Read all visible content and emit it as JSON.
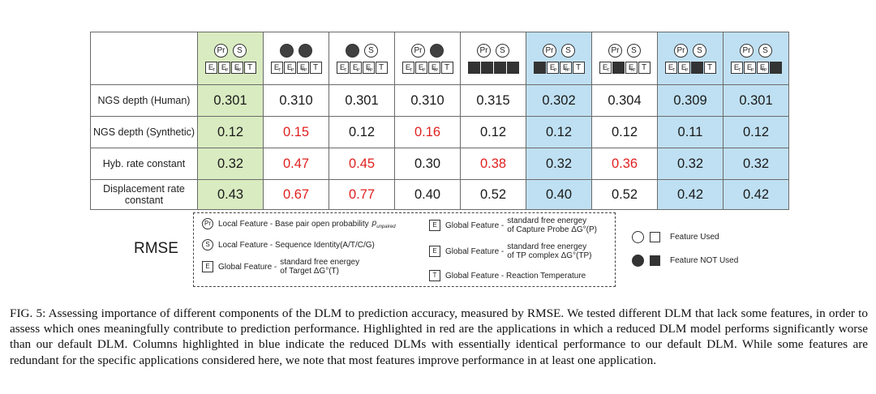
{
  "columns": [
    {
      "pr": "Pr",
      "s": "S",
      "pr_used": true,
      "s_used": true,
      "et_used": true,
      "ep_used": true,
      "etp_used": true,
      "t_used": true,
      "highlight": "green"
    },
    {
      "pr": "Pr",
      "s": "S",
      "pr_used": false,
      "s_used": false,
      "et_used": true,
      "ep_used": true,
      "etp_used": true,
      "t_used": true,
      "highlight": "none"
    },
    {
      "pr": "Pr",
      "s": "S",
      "pr_used": false,
      "s_used": true,
      "et_used": true,
      "ep_used": true,
      "etp_used": true,
      "t_used": true,
      "highlight": "none"
    },
    {
      "pr": "Pr",
      "s": "S",
      "pr_used": true,
      "s_used": false,
      "et_used": true,
      "ep_used": true,
      "etp_used": true,
      "t_used": true,
      "highlight": "none"
    },
    {
      "pr": "Pr",
      "s": "S",
      "pr_used": true,
      "s_used": true,
      "et_used": false,
      "ep_used": false,
      "etp_used": false,
      "t_used": false,
      "highlight": "none"
    },
    {
      "pr": "Pr",
      "s": "S",
      "pr_used": true,
      "s_used": true,
      "et_used": false,
      "ep_used": true,
      "etp_used": true,
      "t_used": true,
      "highlight": "blue"
    },
    {
      "pr": "Pr",
      "s": "S",
      "pr_used": true,
      "s_used": true,
      "et_used": true,
      "ep_used": false,
      "etp_used": true,
      "t_used": true,
      "highlight": "none"
    },
    {
      "pr": "Pr",
      "s": "S",
      "pr_used": true,
      "s_used": true,
      "et_used": true,
      "ep_used": true,
      "etp_used": false,
      "t_used": true,
      "highlight": "blue"
    },
    {
      "pr": "Pr",
      "s": "S",
      "pr_used": true,
      "s_used": true,
      "et_used": true,
      "ep_used": true,
      "etp_used": true,
      "t_used": false,
      "highlight": "blue"
    }
  ],
  "feature_letters": {
    "e": "E",
    "t_sub": "T",
    "p_sub": "P",
    "tp_sub": "TP",
    "temp": "T"
  },
  "rows": [
    {
      "label": "NGS depth (Human)",
      "values": [
        "0.301",
        "0.310",
        "0.301",
        "0.310",
        "0.315",
        "0.302",
        "0.304",
        "0.309",
        "0.301"
      ],
      "red": [
        false,
        false,
        false,
        false,
        false,
        false,
        false,
        false,
        false
      ]
    },
    {
      "label": "NGS depth (Synthetic)",
      "values": [
        "0.12",
        "0.15",
        "0.12",
        "0.16",
        "0.12",
        "0.12",
        "0.12",
        "0.11",
        "0.12"
      ],
      "red": [
        false,
        true,
        false,
        true,
        false,
        false,
        false,
        false,
        false
      ]
    },
    {
      "label": "Hyb. rate constant",
      "values": [
        "0.32",
        "0.47",
        "0.45",
        "0.30",
        "0.38",
        "0.32",
        "0.36",
        "0.32",
        "0.32"
      ],
      "red": [
        false,
        true,
        true,
        false,
        true,
        false,
        true,
        false,
        false
      ]
    },
    {
      "label": "Displacement rate constant",
      "values": [
        "0.43",
        "0.67",
        "0.77",
        "0.40",
        "0.52",
        "0.40",
        "0.52",
        "0.42",
        "0.42"
      ],
      "red": [
        false,
        true,
        true,
        false,
        false,
        false,
        false,
        false,
        false
      ]
    }
  ],
  "legend": {
    "rmse_label": "RMSE",
    "pr_text": "Local Feature - Base pair open probability",
    "pr_sym": "p",
    "pr_sub": "unpaired",
    "s_text": "Local Feature - Sequence Identity(A/T/C/G)",
    "et_prefix": "Global Feature -",
    "et_line1": "standard free energey",
    "et_line2": "of Target ΔG°(T)",
    "ep_prefix": "Global Feature -",
    "ep_line1": "standard free energey",
    "ep_line2": "of Capture Probe ΔG°(P)",
    "etp_prefix": "Global Feature -",
    "etp_line1": "standard free energey",
    "etp_line2": "of TP complex ΔG°(TP)",
    "t_text": "Global Feature - Reaction Temperature",
    "used_text": "Feature Used",
    "not_used_text": "Feature NOT Used"
  },
  "caption": "FIG. 5: Assessing importance of different components of the DLM to prediction accuracy, measured by RMSE. We tested different DLM that lack some features, in order to assess which ones meaningfully contribute to prediction performance. Highlighted in red are the applications in which a reduced DLM model performs significantly worse than our default DLM. Columns highlighted in blue indicate the reduced DLMs with essentially identical performance to our default DLM. While some features are redundant for the specific applications considered here, we note that most features improve performance in at least one application."
}
